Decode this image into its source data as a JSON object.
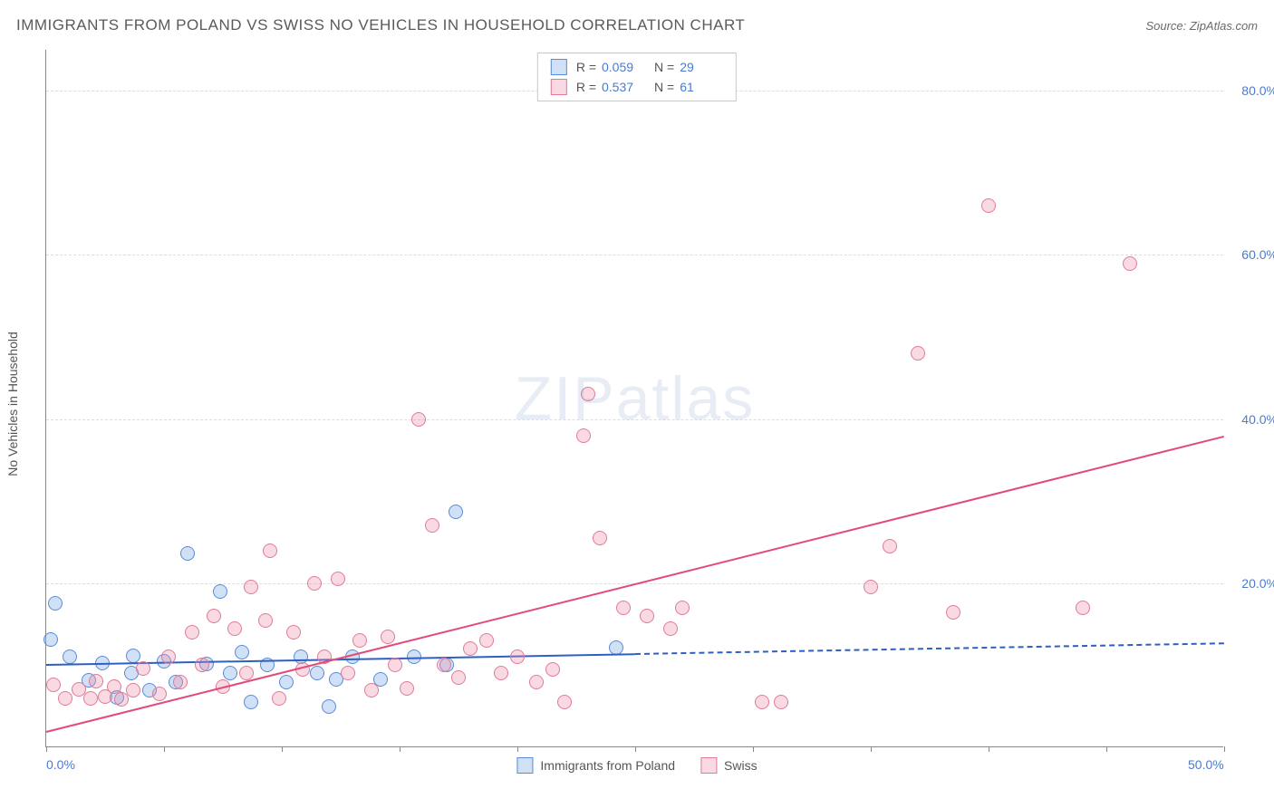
{
  "title": "IMMIGRANTS FROM POLAND VS SWISS NO VEHICLES IN HOUSEHOLD CORRELATION CHART",
  "source_label": "Source: ZipAtlas.com",
  "watermark": "ZIPatlas",
  "y_axis_label": "No Vehicles in Household",
  "chart": {
    "type": "scatter",
    "xlim": [
      0,
      50
    ],
    "ylim": [
      0,
      85
    ],
    "x_ticks": [
      0,
      5,
      10,
      15,
      20,
      25,
      30,
      35,
      40,
      45,
      50
    ],
    "x_tick_labels": {
      "0": "0.0%",
      "50": "50.0%"
    },
    "y_grid": [
      20,
      40,
      60,
      80
    ],
    "y_tick_labels": {
      "20": "20.0%",
      "40": "40.0%",
      "60": "60.0%",
      "80": "80.0%"
    },
    "background_color": "#ffffff",
    "grid_color": "#dddddd",
    "marker_radius": 8,
    "marker_border_width": 1.2,
    "series": [
      {
        "name": "Immigrants from Poland",
        "fill": "rgba(120,165,225,0.35)",
        "stroke": "#5a8bd8",
        "line_color": "#2f5fc2",
        "R": "0.059",
        "N": "29",
        "reg": {
          "x1": 0,
          "y1": 10.2,
          "x2": 50,
          "y2": 12.8,
          "solid_until_x": 25
        },
        "points": [
          [
            0.4,
            17.6
          ],
          [
            0.2,
            13.1
          ],
          [
            1.0,
            11.0
          ],
          [
            1.8,
            8.2
          ],
          [
            2.4,
            10.3
          ],
          [
            3.0,
            6.1
          ],
          [
            3.6,
            9.1
          ],
          [
            3.7,
            11.2
          ],
          [
            4.4,
            7.0
          ],
          [
            5.0,
            10.5
          ],
          [
            5.5,
            8.0
          ],
          [
            6.0,
            23.6
          ],
          [
            6.8,
            10.2
          ],
          [
            7.4,
            19.0
          ],
          [
            7.8,
            9.0
          ],
          [
            8.3,
            11.6
          ],
          [
            8.7,
            5.5
          ],
          [
            9.4,
            10.0
          ],
          [
            10.2,
            8.0
          ],
          [
            10.8,
            11.0
          ],
          [
            11.5,
            9.1
          ],
          [
            12.0,
            5.0
          ],
          [
            12.3,
            8.3
          ],
          [
            13.0,
            11.0
          ],
          [
            14.2,
            8.3
          ],
          [
            15.6,
            11.0
          ],
          [
            17.0,
            10.0
          ],
          [
            17.4,
            28.7
          ],
          [
            24.2,
            12.1
          ]
        ]
      },
      {
        "name": "Swiss",
        "fill": "rgba(240,140,165,0.32)",
        "stroke": "#e07a98",
        "line_color": "#e24a7a",
        "R": "0.537",
        "N": "61",
        "reg": {
          "x1": 0,
          "y1": 2.0,
          "x2": 50,
          "y2": 38.0,
          "solid_until_x": 50
        },
        "points": [
          [
            0.3,
            7.6
          ],
          [
            0.8,
            6.0
          ],
          [
            1.4,
            7.1
          ],
          [
            1.9,
            6.0
          ],
          [
            2.1,
            8.1
          ],
          [
            2.5,
            6.2
          ],
          [
            2.9,
            7.4
          ],
          [
            3.2,
            5.8
          ],
          [
            3.7,
            7.0
          ],
          [
            4.1,
            9.6
          ],
          [
            4.8,
            6.5
          ],
          [
            5.2,
            11.0
          ],
          [
            5.7,
            8.0
          ],
          [
            6.2,
            14.0
          ],
          [
            6.6,
            10.0
          ],
          [
            7.1,
            16.0
          ],
          [
            7.5,
            7.4
          ],
          [
            8.0,
            14.5
          ],
          [
            8.5,
            9.0
          ],
          [
            8.7,
            19.5
          ],
          [
            9.3,
            15.5
          ],
          [
            9.5,
            24.0
          ],
          [
            9.9,
            6.0
          ],
          [
            10.5,
            14.0
          ],
          [
            10.9,
            9.5
          ],
          [
            11.4,
            20.0
          ],
          [
            11.8,
            11.0
          ],
          [
            12.4,
            20.5
          ],
          [
            12.8,
            9.0
          ],
          [
            13.3,
            13.0
          ],
          [
            13.8,
            7.0
          ],
          [
            14.5,
            13.5
          ],
          [
            14.8,
            10.0
          ],
          [
            15.3,
            7.2
          ],
          [
            15.8,
            40.0
          ],
          [
            16.4,
            27.0
          ],
          [
            16.9,
            10.0
          ],
          [
            17.5,
            8.5
          ],
          [
            18.0,
            12.0
          ],
          [
            18.7,
            13.0
          ],
          [
            19.3,
            9.0
          ],
          [
            20.0,
            11.0
          ],
          [
            20.8,
            8.0
          ],
          [
            21.5,
            9.5
          ],
          [
            22.0,
            5.5
          ],
          [
            22.8,
            38.0
          ],
          [
            23.0,
            43.0
          ],
          [
            23.5,
            25.5
          ],
          [
            24.5,
            17.0
          ],
          [
            25.5,
            16.0
          ],
          [
            26.5,
            14.5
          ],
          [
            27.0,
            17.0
          ],
          [
            30.4,
            5.5
          ],
          [
            31.2,
            5.5
          ],
          [
            35.0,
            19.5
          ],
          [
            35.8,
            24.5
          ],
          [
            37.0,
            48.0
          ],
          [
            38.5,
            16.5
          ],
          [
            40.0,
            66.0
          ],
          [
            44.0,
            17.0
          ],
          [
            46.0,
            59.0
          ]
        ]
      }
    ]
  },
  "top_legend": {
    "cols_label_R": "R =",
    "cols_label_N": "N ="
  },
  "bottom_legend": {
    "items": [
      "Immigrants from Poland",
      "Swiss"
    ]
  }
}
